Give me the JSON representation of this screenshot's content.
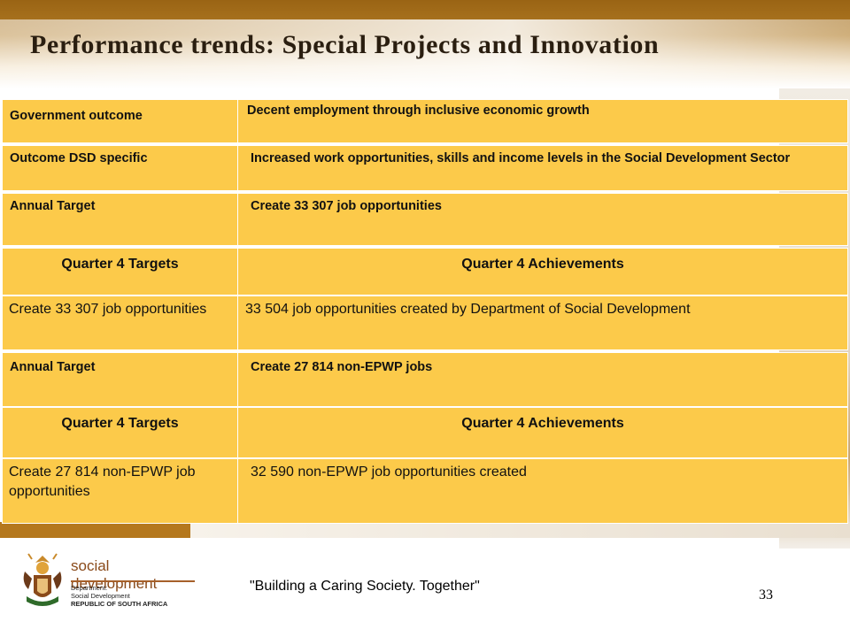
{
  "title": "Performance trends: Special Projects and Innovation",
  "rows": [
    {
      "label": "Government outcome",
      "value": "Decent employment through inclusive economic growth"
    },
    {
      "label": "Outcome DSD specific",
      "value": "Increased work opportunities, skills and income levels in the Social Development Sector"
    }
  ],
  "section1": {
    "annual_label": "Annual Target",
    "annual_value": "Create 33 307 job opportunities",
    "header_targets": "Quarter 4 Targets",
    "header_achievements": "Quarter 4 Achievements",
    "target": "Create 33 307 job opportunities",
    "achievement": "33 504 job opportunities created by Department of Social Development"
  },
  "section2": {
    "annual_label": "Annual Target",
    "annual_value": "Create 27 814 non-EPWP jobs",
    "header_targets": "Quarter 4 Targets",
    "header_achievements": "Quarter 4 Achievements",
    "target": "Create 27 814 non-EPWP job opportunities",
    "achievement": "32 590 non-EPWP job opportunities created"
  },
  "footer": {
    "logo_name": "social development",
    "logo_line1": "Department:",
    "logo_line2": "Social Development",
    "logo_line3": "REPUBLIC OF SOUTH AFRICA",
    "slogan": "\"Building a Caring Society. Together\"",
    "page_number": "33"
  },
  "colors": {
    "cell_fill": "#fcca4a",
    "band_brown": "#9a6414"
  }
}
